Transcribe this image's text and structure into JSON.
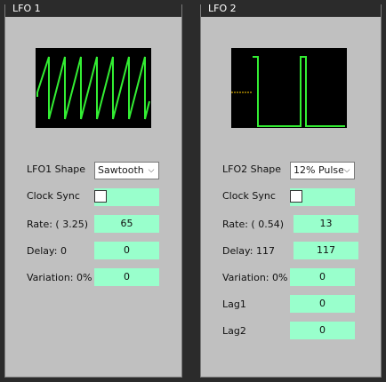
{
  "lfo1": {
    "title": "LFO 1",
    "shape_label": "LFO1 Shape",
    "shape_value": "Sawtooth",
    "clock_sync_label": "Clock Sync",
    "clock_sync_checked": false,
    "rate_label": "Rate: ( 3.25)",
    "rate_value": "65",
    "delay_label": "Delay: 0",
    "delay_value": "0",
    "variation_label": "Variation: 0%",
    "variation_value": "0"
  },
  "lfo2": {
    "title": "LFO 2",
    "shape_label": "LFO2 Shape",
    "shape_value": "12% Pulse",
    "clock_sync_label": "Clock Sync",
    "clock_sync_checked": false,
    "rate_label": "Rate: ( 0.54)",
    "rate_value": "13",
    "delay_label": "Delay: 117",
    "delay_value": "117",
    "variation_label": "Variation: 0%",
    "variation_value": "0",
    "lag1_label": "Lag1",
    "lag1_value": "0",
    "lag2_label": "Lag2",
    "lag2_value": "0"
  },
  "colors": {
    "panel_bg": "#c0c0c0",
    "field_bg": "#99ffcc",
    "waveform": "#33ee33",
    "scope_bg": "#000000",
    "app_bg": "#2b2b2b"
  },
  "icons": {
    "dropdown": "chevron-down-icon"
  }
}
